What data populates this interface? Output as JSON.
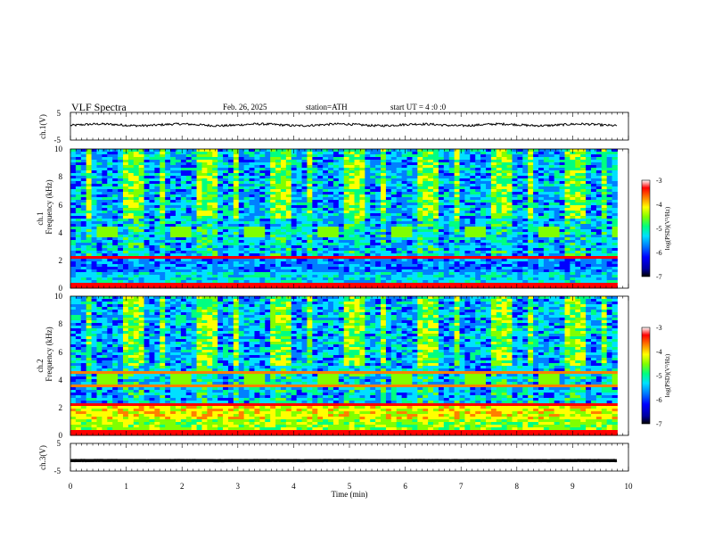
{
  "header": {
    "title": "VLF Spectra",
    "date": "Feb. 26, 2025",
    "station": "station=ATH",
    "start": "start UT = 4 :0 :0"
  },
  "chart_data": [
    {
      "type": "line",
      "name": "ch1-waveform",
      "ylabel": "ch.1(V)",
      "ylim": [
        -5,
        5
      ],
      "yticks": [
        "5",
        "-5"
      ],
      "xlim": [
        0,
        10
      ],
      "baseline_v": 0.5
    },
    {
      "type": "heatmap",
      "name": "ch1-spectrogram",
      "ylabel_channel": "ch.1",
      "ylabel": "Frequency (kHz)",
      "ylim": [
        0,
        10
      ],
      "yticks": [
        "0",
        "2",
        "4",
        "6",
        "8",
        "10"
      ],
      "xlim": [
        0,
        10
      ],
      "colorbar_label": "log(PSD)(V²/Hz)",
      "colorbar_range": [
        -7,
        -3
      ],
      "colorbar_ticks": [
        "-3",
        "-4",
        "-5",
        "-6",
        "-7"
      ]
    },
    {
      "type": "heatmap",
      "name": "ch2-spectrogram",
      "ylabel_channel": "ch.2",
      "ylabel": "Frequency (kHz)",
      "ylim": [
        0,
        10
      ],
      "yticks": [
        "0",
        "2",
        "4",
        "6",
        "8",
        "10"
      ],
      "xlim": [
        0,
        10
      ],
      "colorbar_label": "log(PSD)(V²/Hz)",
      "colorbar_range": [
        -7,
        -3
      ],
      "colorbar_ticks": [
        "-3",
        "-4",
        "-5",
        "-6",
        "-7"
      ]
    },
    {
      "type": "line",
      "name": "ch3-waveform",
      "ylabel": "ch.3(V)",
      "ylim": [
        -5,
        5
      ],
      "yticks": [
        "5",
        "-5"
      ],
      "xlim": [
        0,
        10
      ],
      "baseline_v": -1.2
    }
  ],
  "xaxis": {
    "label": "Time (min)",
    "ticks": [
      "0",
      "1",
      "2",
      "3",
      "4",
      "5",
      "6",
      "7",
      "8",
      "9",
      "10"
    ]
  },
  "colors": {
    "colormap": [
      "#000000",
      "#0000a0",
      "#0000ff",
      "#0080ff",
      "#00e0ff",
      "#00ff80",
      "#80ff00",
      "#ffff00",
      "#ff8000",
      "#ff0000",
      "#ffffff"
    ]
  }
}
